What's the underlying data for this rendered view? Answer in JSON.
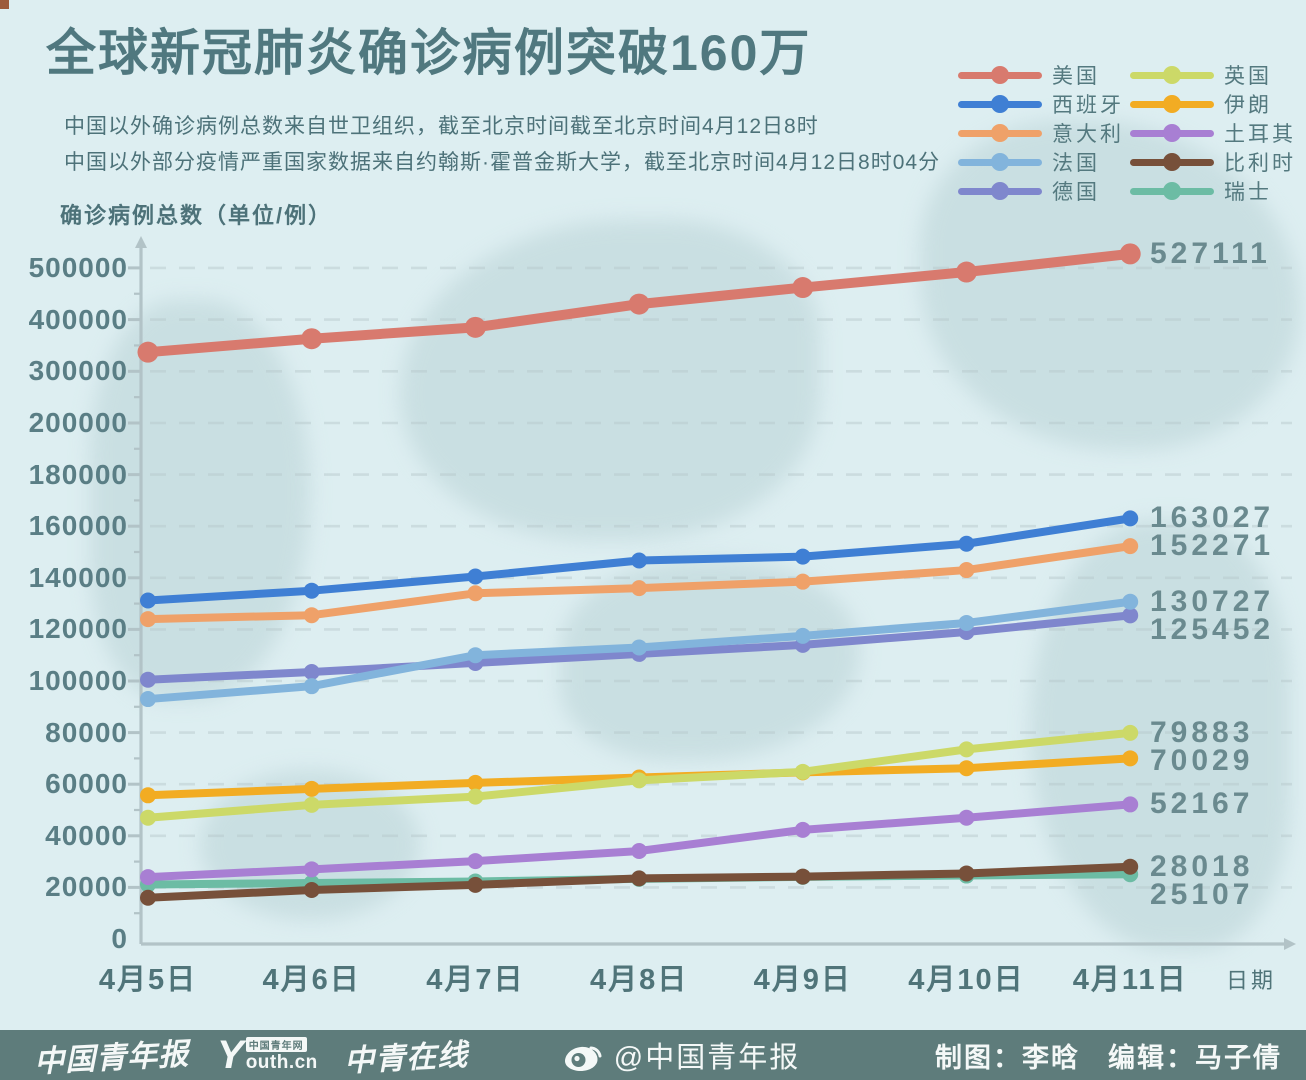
{
  "header": {
    "title": "全球新冠肺炎确诊病例突破160万",
    "subtitle_line1": "中国以外确诊病例总数来自世卫组织，截至北京时间截至北京时间4月12日8时",
    "subtitle_line2": "中国以外部分疫情严重国家数据来自约翰斯·霍普金斯大学，截至北京时间4月12日8时04分",
    "y_axis_unit": "确诊病例总数（单位/例）"
  },
  "chart_data": {
    "type": "line",
    "title": "全球新冠肺炎确诊病例突破160万",
    "xlabel": "日期",
    "ylabel": "确诊病例总数（单位/例）",
    "x_categories": [
      "4月5日",
      "4月6日",
      "4月7日",
      "4月8日",
      "4月9日",
      "4月10日",
      "4月11日"
    ],
    "y_major_ticks": [
      500000,
      400000,
      300000,
      200000,
      180000,
      160000,
      140000,
      120000,
      100000,
      80000,
      60000,
      40000,
      20000,
      0
    ],
    "y_minor_ticks": [
      450000,
      350000,
      250000,
      190000,
      170000,
      150000,
      130000,
      110000,
      90000,
      70000,
      50000,
      30000,
      10000
    ],
    "y_scale_note": "broken scale: 20000 per step up to 200000, then 100000 per step to 500000",
    "grid": "dashed horizontal lines at every major tick",
    "legend_position": "top-right, two columns",
    "series": [
      {
        "name": "美国",
        "color": "#d87a6e",
        "values": [
          337000,
          363000,
          385000,
          430000,
          462000,
          492000,
          527111
        ]
      },
      {
        "name": "西班牙",
        "color": "#3f7fd4",
        "values": [
          131200,
          135000,
          140500,
          146700,
          148200,
          153200,
          163027
        ]
      },
      {
        "name": "意大利",
        "color": "#efa169",
        "values": [
          124000,
          125500,
          134000,
          136000,
          138500,
          143000,
          152271
        ]
      },
      {
        "name": "法国",
        "color": "#82b4dc",
        "values": [
          93000,
          98000,
          110000,
          113000,
          117500,
          122500,
          130727
        ]
      },
      {
        "name": "德国",
        "color": "#7f87cd",
        "values": [
          100500,
          103500,
          107000,
          110500,
          114000,
          119000,
          125452
        ]
      },
      {
        "name": "英国",
        "color": "#ccd968",
        "values": [
          47000,
          52000,
          55200,
          61500,
          64800,
          73500,
          79883
        ]
      },
      {
        "name": "伊朗",
        "color": "#f2ac23",
        "values": [
          55700,
          58200,
          60500,
          62600,
          64600,
          66200,
          70029
        ]
      },
      {
        "name": "土耳其",
        "color": "#a87fd3",
        "values": [
          24000,
          27000,
          30200,
          34100,
          42300,
          47000,
          52167
        ]
      },
      {
        "name": "比利时",
        "color": "#77503a",
        "values": [
          16000,
          19000,
          21000,
          23500,
          24200,
          25400,
          28018
        ]
      },
      {
        "name": "瑞士",
        "color": "#6cbca4",
        "values": [
          21100,
          21700,
          22300,
          23300,
          24100,
          24600,
          25107
        ]
      }
    ],
    "end_labels": [
      "527111",
      "163027",
      "152271",
      "130727",
      "125452",
      "79883",
      "70029",
      "52167",
      "28018",
      "25107"
    ]
  },
  "footer": {
    "logo1": "中国青年报",
    "youth_y": "Y",
    "youth_badge": "中国青年网",
    "youth_cn": "outh.cn",
    "logo3": "中青在线",
    "weibo_handle": "@中国青年报",
    "credit_design": "制图：李晗",
    "credit_editor": "编辑：马子倩"
  },
  "colors": {
    "background": "#ddeef1",
    "map_watermark": "#c3dadd",
    "footer_bar": "#5e7c7b",
    "axis": "#b2c3c7",
    "gridline": "#b6c7ca",
    "title_text": "#50787f",
    "tick_text": "#5a7e85",
    "value_text": "#6a8a8f"
  }
}
